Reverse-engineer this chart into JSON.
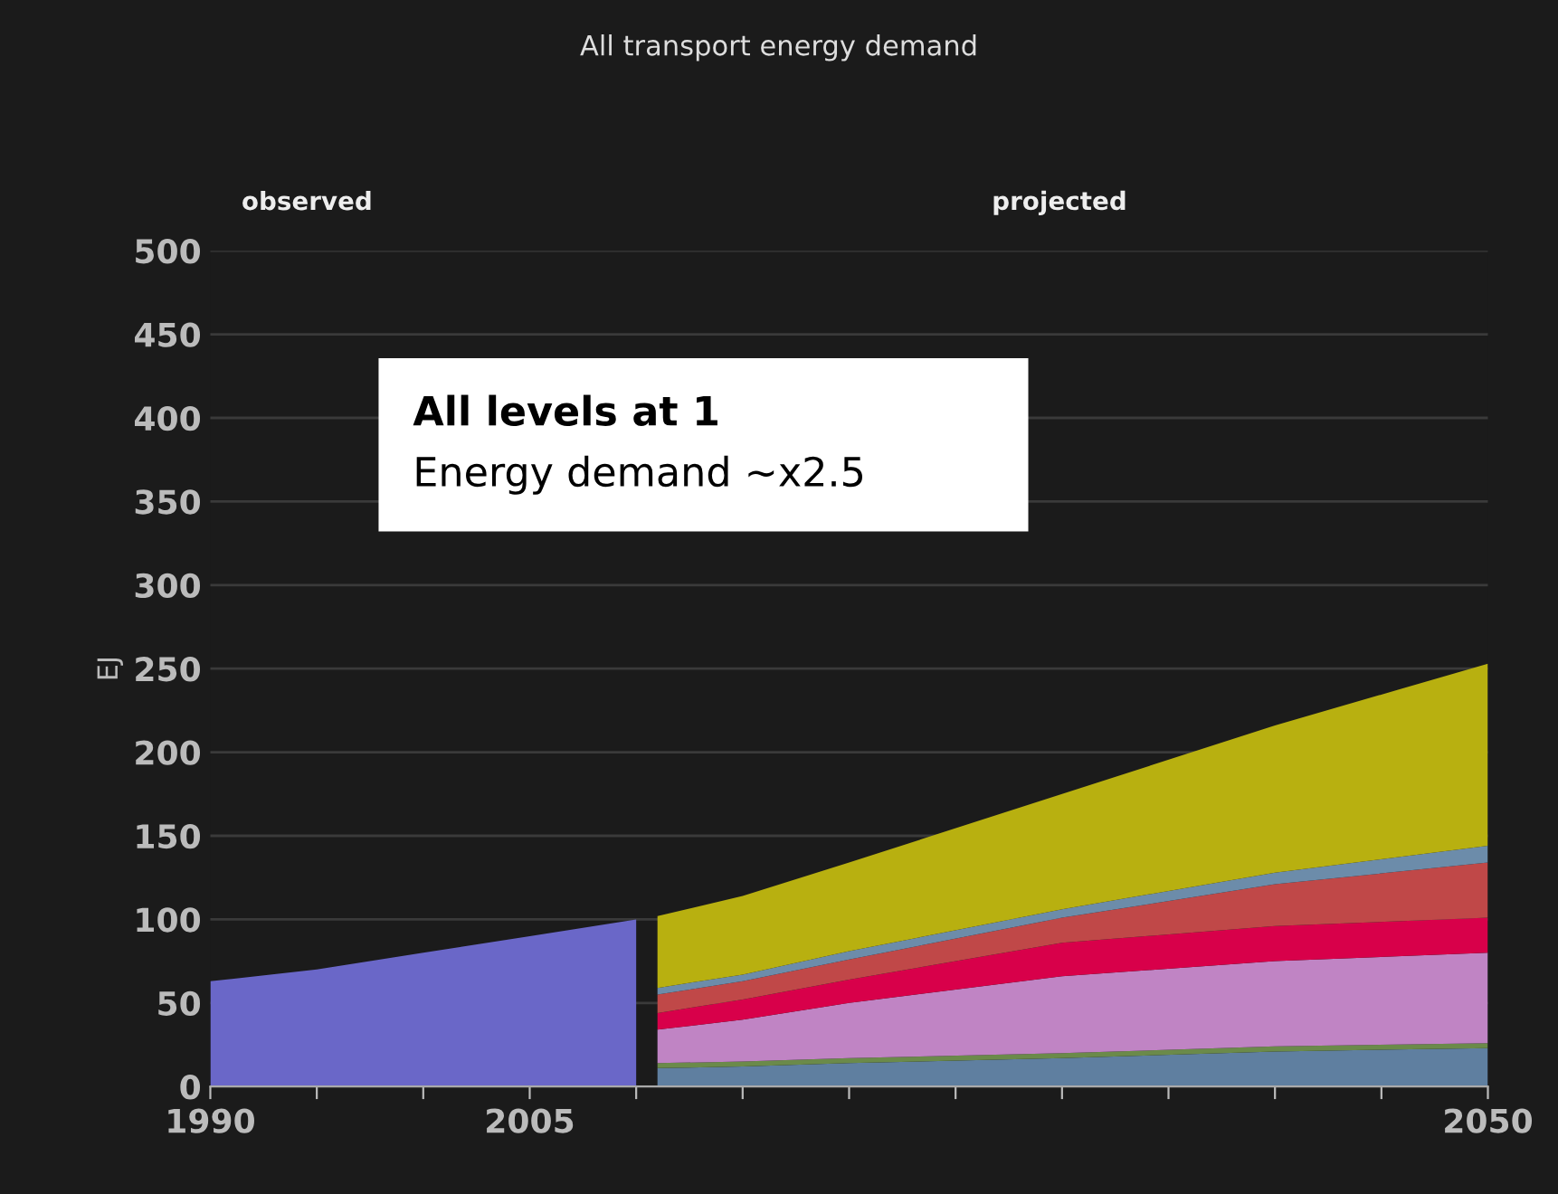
{
  "chart_data": {
    "type": "area",
    "stacked": true,
    "title": "All transport energy demand",
    "ylabel": "EJ",
    "annotations": [
      "observed",
      "projected",
      "All levels at 1",
      "Energy demand ~x2.5"
    ],
    "xlim": [
      1990,
      2050
    ],
    "ylim": [
      0,
      500
    ],
    "x": [
      1990,
      1995,
      2000,
      2005,
      2010,
      2011,
      2015,
      2020,
      2030,
      2040,
      2050
    ],
    "xticks": [
      1990,
      {
        "value": 1995,
        "label": null
      },
      {
        "value": 2000,
        "label": null
      },
      2005,
      {
        "value": 2010,
        "label": null
      },
      {
        "value": 2015,
        "label": null
      },
      {
        "value": 2020,
        "label": null
      },
      {
        "value": 2025,
        "label": null
      },
      {
        "value": 2030,
        "label": null
      },
      {
        "value": 2035,
        "label": null
      },
      {
        "value": 2040,
        "label": null
      },
      {
        "value": 2045,
        "label": null
      },
      2050
    ],
    "yticks": [
      0,
      50,
      100,
      150,
      200,
      250,
      300,
      350,
      400,
      450,
      500
    ],
    "grid": "y",
    "series": [
      {
        "color": "#6a67c8",
        "values": [
          63,
          70,
          80,
          90,
          100,
          null,
          null,
          null,
          null,
          null,
          null
        ]
      },
      {
        "color": "#5f7fa0",
        "values": [
          null,
          null,
          null,
          null,
          null,
          11,
          12,
          14,
          17,
          21,
          23
        ]
      },
      {
        "color": "#6b8a4a",
        "values": [
          null,
          null,
          null,
          null,
          null,
          3,
          3,
          3,
          3,
          3,
          3
        ]
      },
      {
        "color": "#c084c4",
        "values": [
          null,
          null,
          null,
          null,
          null,
          20,
          25,
          33,
          46,
          51,
          54
        ]
      },
      {
        "color": "#d8004a",
        "values": [
          null,
          null,
          null,
          null,
          null,
          10,
          12,
          14,
          20,
          21,
          21
        ]
      },
      {
        "color": "#c04848",
        "values": [
          null,
          null,
          null,
          null,
          null,
          11,
          11,
          12,
          15,
          25,
          33
        ]
      },
      {
        "color": "#6c8caa",
        "values": [
          null,
          null,
          null,
          null,
          null,
          4,
          4,
          5,
          5,
          7,
          10
        ]
      },
      {
        "color": "#b8b010",
        "values": [
          null,
          null,
          null,
          null,
          null,
          43,
          47,
          53,
          69,
          88,
          109
        ]
      }
    ]
  }
}
